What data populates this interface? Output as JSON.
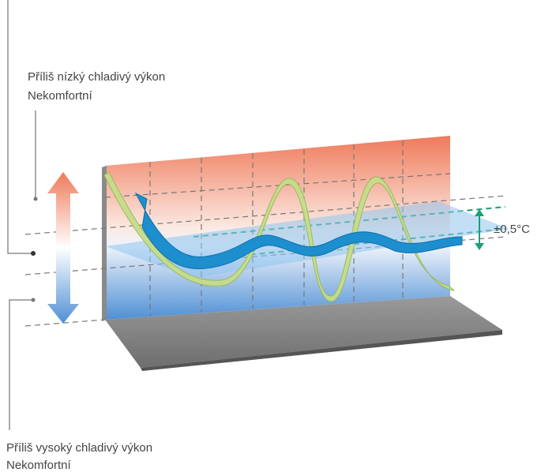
{
  "labels": {
    "top": [
      "Příliš nízký chladivý výkon",
      "Nekomfortní"
    ],
    "bottom": [
      "Příliš vysoký chladivý výkon",
      "Nekomfortní"
    ],
    "tolerance": "±0,5°C"
  }
}
